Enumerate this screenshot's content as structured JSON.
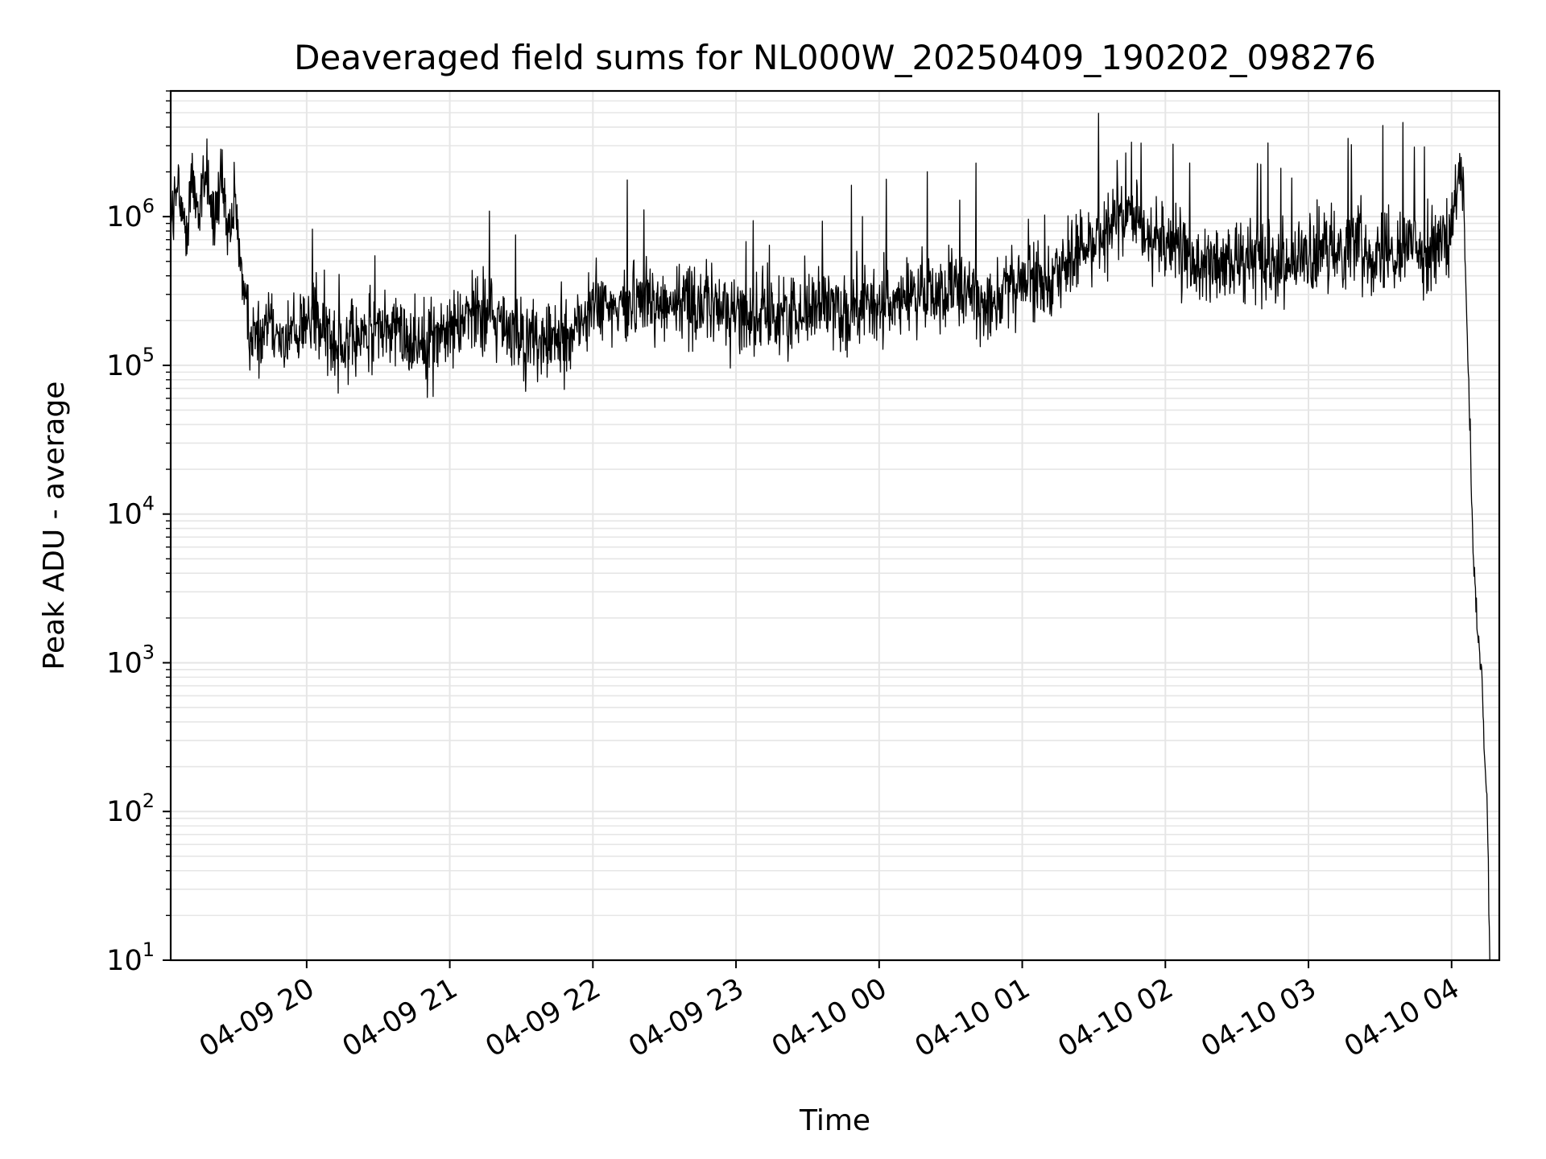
{
  "chart_data": {
    "type": "line",
    "title": "Deaveraged field sums for NL000W_20250409_190202_098276",
    "xlabel": "Time",
    "ylabel": "Peak ADU - average",
    "xlim": [
      "2025-04-09 19:03",
      "2025-04-10 04:20"
    ],
    "ylim": [
      10,
      7000000
    ],
    "yscale": "log",
    "grid": true,
    "x_tick_labels": [
      "04-09 20",
      "04-09 21",
      "04-09 22",
      "04-09 23",
      "04-10 00",
      "04-10 01",
      "04-10 02",
      "04-10 03",
      "04-10 04"
    ],
    "y_tick_labels": [
      {
        "base": "10",
        "exp": "1"
      },
      {
        "base": "10",
        "exp": "2"
      },
      {
        "base": "10",
        "exp": "3"
      },
      {
        "base": "10",
        "exp": "4"
      },
      {
        "base": "10",
        "exp": "5"
      },
      {
        "base": "10",
        "exp": "6"
      }
    ],
    "series": [
      {
        "color": "#000000",
        "x": [
          "2025-04-09 19:03",
          "2025-04-09 19:06",
          "2025-04-09 19:09",
          "2025-04-09 19:12",
          "2025-04-09 19:15",
          "2025-04-09 19:18",
          "2025-04-09 19:21",
          "2025-04-09 19:24",
          "2025-04-09 19:27",
          "2025-04-09 19:30",
          "2025-04-09 19:35",
          "2025-04-09 19:40",
          "2025-04-09 19:45",
          "2025-04-09 19:50",
          "2025-04-09 19:55",
          "2025-04-09 20:00",
          "2025-04-09 20:10",
          "2025-04-09 20:20",
          "2025-04-09 20:30",
          "2025-04-09 20:40",
          "2025-04-09 20:50",
          "2025-04-09 21:00",
          "2025-04-09 21:10",
          "2025-04-09 21:20",
          "2025-04-09 21:30",
          "2025-04-09 21:40",
          "2025-04-09 21:50",
          "2025-04-09 22:00",
          "2025-04-09 22:10",
          "2025-04-09 22:20",
          "2025-04-09 22:30",
          "2025-04-09 22:40",
          "2025-04-09 22:50",
          "2025-04-09 23:00",
          "2025-04-09 23:10",
          "2025-04-09 23:20",
          "2025-04-09 23:30",
          "2025-04-09 23:40",
          "2025-04-09 23:50",
          "2025-04-10 00:00",
          "2025-04-10 00:10",
          "2025-04-10 00:20",
          "2025-04-10 00:30",
          "2025-04-10 00:40",
          "2025-04-10 00:50",
          "2025-04-10 01:00",
          "2025-04-10 01:10",
          "2025-04-10 01:20",
          "2025-04-10 01:30",
          "2025-04-10 01:40",
          "2025-04-10 01:50",
          "2025-04-10 02:00",
          "2025-04-10 02:10",
          "2025-04-10 02:20",
          "2025-04-10 02:30",
          "2025-04-10 02:40",
          "2025-04-10 02:50",
          "2025-04-10 03:00",
          "2025-04-10 03:10",
          "2025-04-10 03:20",
          "2025-04-10 03:30",
          "2025-04-10 03:40",
          "2025-04-10 03:50",
          "2025-04-10 04:00",
          "2025-04-10 04:03",
          "2025-04-10 04:05",
          "2025-04-10 04:06",
          "2025-04-10 04:07",
          "2025-04-10 04:08",
          "2025-04-10 04:09",
          "2025-04-10 04:10",
          "2025-04-10 04:11",
          "2025-04-10 04:12",
          "2025-04-10 04:13",
          "2025-04-10 04:14",
          "2025-04-10 04:15",
          "2025-04-10 04:16"
        ],
        "y": [
          1000000,
          1400000,
          800000,
          1800000,
          1100000,
          2200000,
          900000,
          1600000,
          700000,
          1200000,
          200000,
          150000,
          250000,
          130000,
          180000,
          200000,
          160000,
          140000,
          180000,
          160000,
          150000,
          170000,
          250000,
          200000,
          150000,
          140000,
          160000,
          250000,
          230000,
          300000,
          250000,
          280000,
          250000,
          230000,
          200000,
          220000,
          250000,
          260000,
          230000,
          250000,
          280000,
          300000,
          320000,
          280000,
          300000,
          350000,
          400000,
          500000,
          700000,
          900000,
          800000,
          700000,
          500000,
          450000,
          500000,
          550000,
          500000,
          500000,
          600000,
          700000,
          550000,
          650000,
          600000,
          700000,
          2000000,
          1500000,
          300000,
          100000,
          25000,
          5000,
          3000,
          1500,
          1000,
          600,
          200,
          100,
          10
        ]
      }
    ]
  }
}
